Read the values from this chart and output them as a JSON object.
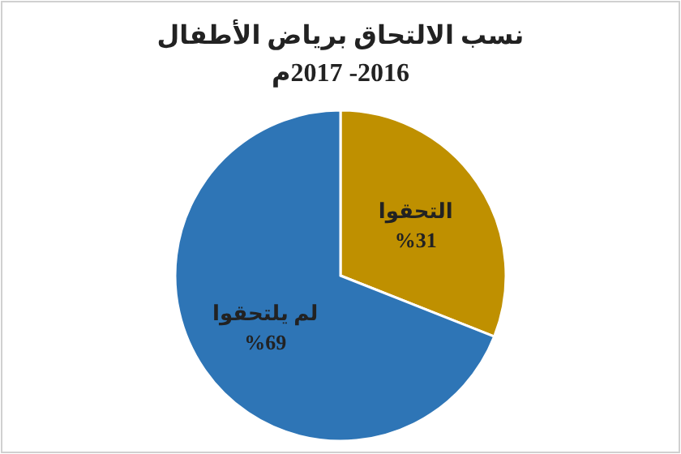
{
  "chart_data": {
    "type": "pie",
    "title": "نسب الالتحاق برياض الأطفال",
    "subtitle": "2016- 2017م",
    "categories": [
      "التحقوا",
      "لم يلتحقوا"
    ],
    "values": [
      31,
      69
    ],
    "value_labels": [
      "%31",
      "%69"
    ],
    "colors": [
      "#bf9000",
      "#2e75b6"
    ],
    "legend": false
  }
}
